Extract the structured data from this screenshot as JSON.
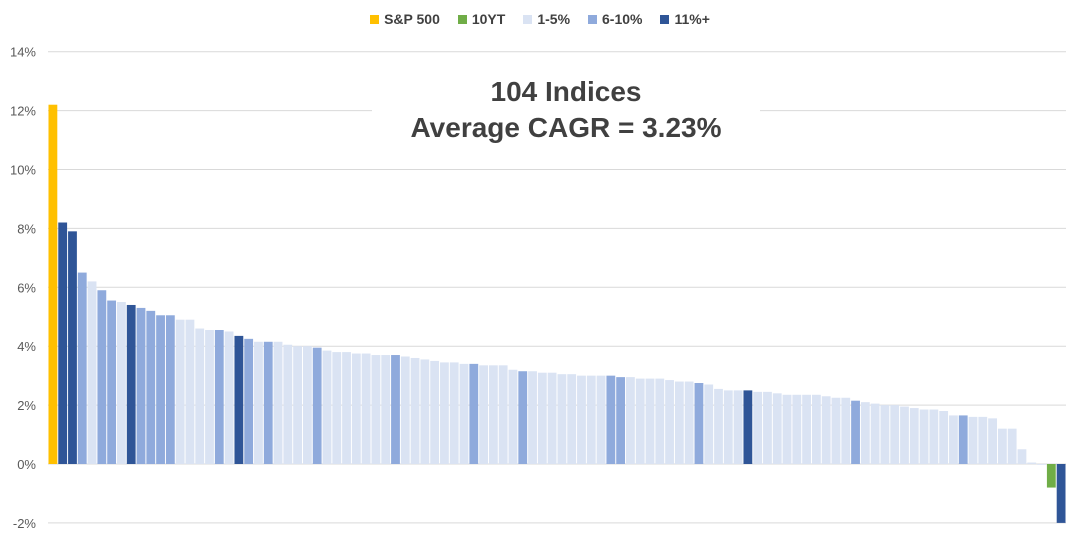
{
  "chart_data": {
    "type": "bar",
    "title": "",
    "xlabel": "",
    "ylabel": "",
    "ylim": [
      -2,
      14
    ],
    "yticks": [
      -2,
      0,
      2,
      4,
      6,
      8,
      10,
      12,
      14
    ],
    "y_tick_suffix": "%",
    "grid": true,
    "legend_position": "top-center",
    "legend": [
      {
        "key": "sp",
        "label": "S&P 500",
        "color": "#FFC000"
      },
      {
        "key": "t",
        "label": "10YT",
        "color": "#70AD47"
      },
      {
        "key": "a",
        "label": "1-5%",
        "color": "#DAE3F3"
      },
      {
        "key": "b",
        "label": "6-10%",
        "color": "#8FAADC"
      },
      {
        "key": "c",
        "label": "11%+",
        "color": "#2F5597"
      }
    ],
    "annotation": [
      "104 Indices",
      "Average CAGR = 3.23%"
    ],
    "values": [
      12.2,
      8.2,
      7.9,
      6.5,
      6.2,
      5.9,
      5.55,
      5.5,
      5.4,
      5.3,
      5.2,
      5.05,
      5.05,
      4.9,
      4.9,
      4.6,
      4.55,
      4.55,
      4.5,
      4.35,
      4.25,
      4.15,
      4.15,
      4.15,
      4.05,
      4.0,
      4.0,
      3.95,
      3.85,
      3.8,
      3.8,
      3.75,
      3.75,
      3.7,
      3.7,
      3.7,
      3.65,
      3.6,
      3.55,
      3.5,
      3.45,
      3.45,
      3.4,
      3.4,
      3.35,
      3.35,
      3.35,
      3.2,
      3.15,
      3.15,
      3.1,
      3.1,
      3.05,
      3.05,
      3.0,
      3.0,
      3.0,
      3.0,
      2.95,
      2.95,
      2.9,
      2.9,
      2.9,
      2.85,
      2.8,
      2.8,
      2.75,
      2.7,
      2.55,
      2.5,
      2.5,
      2.5,
      2.45,
      2.45,
      2.4,
      2.35,
      2.35,
      2.35,
      2.35,
      2.3,
      2.25,
      2.25,
      2.15,
      2.1,
      2.05,
      2.0,
      2.0,
      1.95,
      1.9,
      1.85,
      1.85,
      1.8,
      1.65,
      1.65,
      1.6,
      1.6,
      1.55,
      1.2,
      1.2,
      0.5,
      0.05,
      0.0,
      -0.8,
      -2.0
    ],
    "groups": [
      "sp",
      "c",
      "c",
      "b",
      "a",
      "b",
      "b",
      "a",
      "c",
      "b",
      "b",
      "b",
      "b",
      "a",
      "a",
      "a",
      "a",
      "b",
      "a",
      "c",
      "b",
      "a",
      "b",
      "a",
      "a",
      "a",
      "a",
      "b",
      "a",
      "a",
      "a",
      "a",
      "a",
      "a",
      "a",
      "b",
      "a",
      "a",
      "a",
      "a",
      "a",
      "a",
      "a",
      "b",
      "a",
      "a",
      "a",
      "a",
      "b",
      "a",
      "a",
      "a",
      "a",
      "a",
      "a",
      "a",
      "a",
      "b",
      "b",
      "a",
      "a",
      "a",
      "a",
      "a",
      "a",
      "a",
      "b",
      "a",
      "a",
      "a",
      "a",
      "c",
      "a",
      "a",
      "a",
      "a",
      "a",
      "a",
      "a",
      "a",
      "a",
      "a",
      "b",
      "a",
      "a",
      "a",
      "a",
      "a",
      "a",
      "a",
      "a",
      "a",
      "a",
      "b",
      "a",
      "a",
      "a",
      "a",
      "a",
      "a",
      "a",
      "a",
      "t",
      "c"
    ]
  }
}
